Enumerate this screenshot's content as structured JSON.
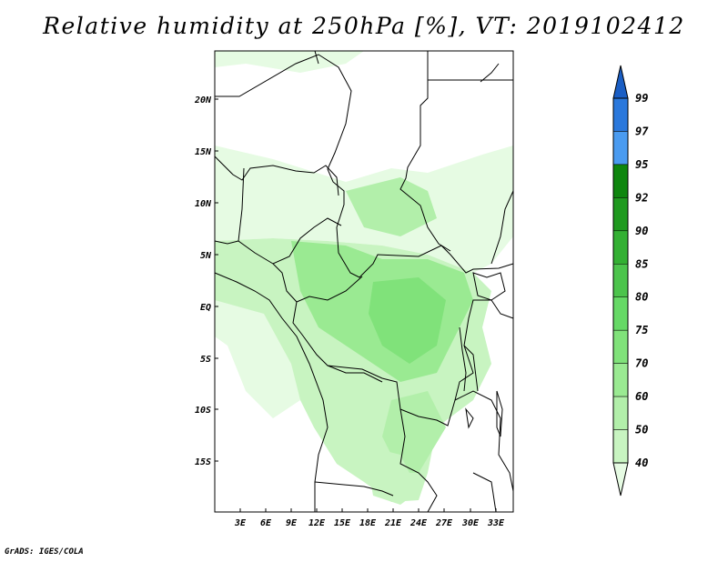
{
  "title": "Relative humidity at 250hPa [%], VT: 2019102412",
  "credit": "GrADS: IGES/COLA",
  "map": {
    "lat_labels": [
      "20N",
      "15N",
      "10N",
      "5N",
      "EQ",
      "5S",
      "10S",
      "15S"
    ],
    "lon_labels": [
      "3E",
      "6E",
      "9E",
      "12E",
      "15E",
      "18E",
      "21E",
      "24E",
      "27E",
      "30E",
      "33E"
    ]
  },
  "colorbar": {
    "labels": [
      "40",
      "50",
      "60",
      "70",
      "75",
      "80",
      "85",
      "90",
      "92",
      "95",
      "97",
      "99"
    ],
    "colors": [
      "#e6fbe3",
      "#c8f4c1",
      "#b2efaa",
      "#9aea92",
      "#80e27a",
      "#66d966",
      "#4cc44c",
      "#33b033",
      "#1f9a1f",
      "#0e860e",
      "#4a9bf0",
      "#2a78dc",
      "#1a5ec4"
    ]
  }
}
